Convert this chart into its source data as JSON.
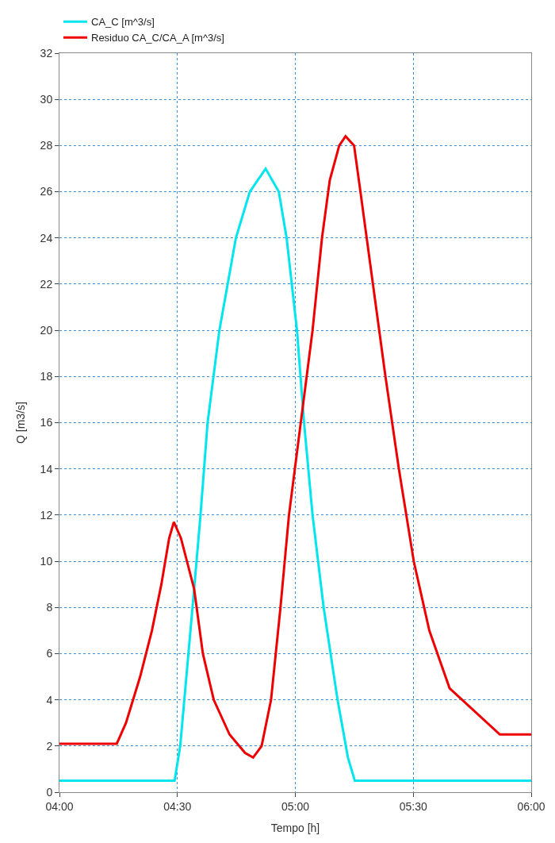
{
  "chart_data": {
    "type": "line",
    "xlabel": "Tempo [h]",
    "ylabel": "Q [m3/s]",
    "xlim": [
      4,
      6
    ],
    "xticks": [
      {
        "value": 4,
        "label": "04:00"
      },
      {
        "value": 4.5,
        "label": "04:30"
      },
      {
        "value": 5,
        "label": "05:00"
      },
      {
        "value": 5.5,
        "label": "05:30"
      },
      {
        "value": 6,
        "label": "06:00"
      }
    ],
    "ylim": [
      0,
      32
    ],
    "yticks": [
      0,
      2,
      4,
      6,
      8,
      10,
      12,
      14,
      16,
      18,
      20,
      22,
      24,
      26,
      28,
      30,
      32
    ],
    "grid": true,
    "legend": "top left",
    "marker": "none",
    "line_style": "solid",
    "series": [
      {
        "name": "CA_C [m^3/s]",
        "color": "#00e5ee",
        "x": [
          4.0,
          4.488,
          4.512,
          4.538,
          4.571,
          4.598,
          4.628,
          4.678,
          4.748,
          4.807,
          4.874,
          4.93,
          4.963,
          5.007,
          5.037,
          5.073,
          5.12,
          5.179,
          5.223,
          5.252,
          6.0
        ],
        "values": [
          0.5,
          0.5,
          2,
          5,
          8.8,
          12,
          16,
          20,
          24,
          26,
          27,
          26,
          24,
          20,
          16,
          12,
          8,
          4,
          1.5,
          0.5,
          0.5
        ]
      },
      {
        "name": "Residuo CA_C/CA_A [m^3/s]",
        "color": "#ee0000",
        "x": [
          4.0,
          4.243,
          4.282,
          4.342,
          4.392,
          4.432,
          4.465,
          4.485,
          4.515,
          4.571,
          4.608,
          4.654,
          4.721,
          4.787,
          4.821,
          4.857,
          4.897,
          4.937,
          4.973,
          5.023,
          5.073,
          5.113,
          5.146,
          5.186,
          5.213,
          5.249,
          5.276,
          5.329,
          5.382,
          5.439,
          5.502,
          5.568,
          5.654,
          5.867,
          6.0
        ],
        "values": [
          2.1,
          2.1,
          3,
          5,
          7,
          9,
          11,
          11.7,
          11,
          8.8,
          6,
          4,
          2.5,
          1.7,
          1.5,
          2,
          4,
          8,
          12,
          16,
          20,
          24,
          26.5,
          28,
          28.4,
          28,
          26,
          22,
          18,
          14,
          10,
          7,
          4.5,
          2.5,
          2.5
        ]
      }
    ]
  }
}
